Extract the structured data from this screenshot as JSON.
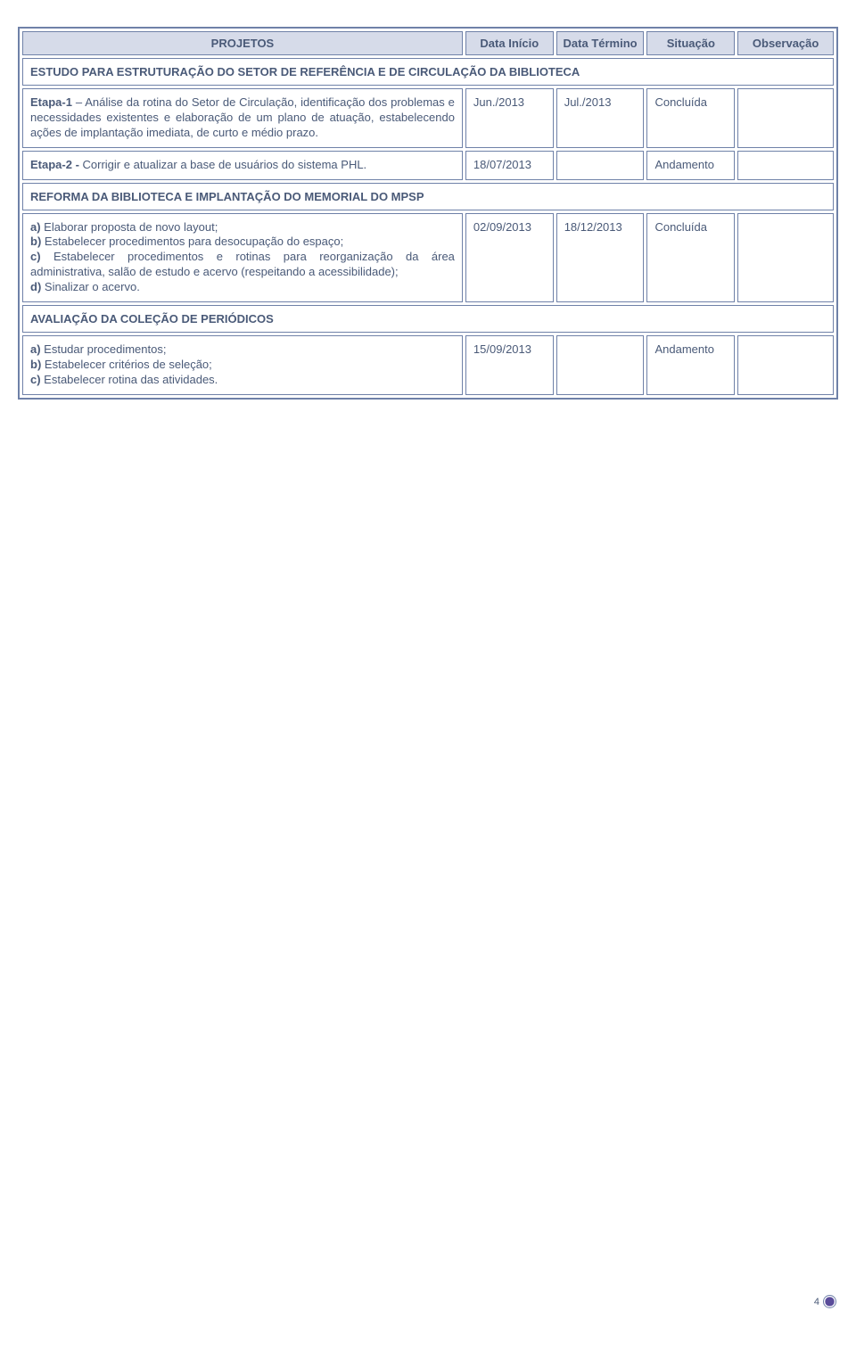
{
  "header": {
    "projetos": "PROJETOS",
    "data_inicio": "Data Início",
    "data_termino": "Data Término",
    "situacao": "Situação",
    "observacao": "Observação"
  },
  "sections": {
    "estudo": {
      "title": "ESTUDO PARA ESTRUTURAÇÃO DO SETOR DE REFERÊNCIA E DE CIRCULAÇÃO DA BIBLIOTECA",
      "etapa1": {
        "label_bold": "Etapa-1",
        "text": " – Análise da rotina do Setor de Circulação, identificação dos problemas e necessidades existentes e elaboração de um plano de atuação, estabelecendo ações de implantação imediata, de curto e médio prazo.",
        "inicio": "Jun./2013",
        "termino": "Jul./2013",
        "situacao": "Concluída",
        "obs": ""
      },
      "etapa2": {
        "label_bold": "Etapa-2 -",
        "text": " Corrigir e atualizar a base de usuários do sistema PHL.",
        "inicio": "18/07/2013",
        "termino": "",
        "situacao": "Andamento",
        "obs": ""
      }
    },
    "reforma": {
      "title": "REFORMA DA BIBLIOTECA E IMPLANTAÇÃO DO MEMORIAL DO MPSP",
      "row": {
        "a_b": "a)",
        "a_t": " Elaborar proposta de novo layout;",
        "b_b": "b)",
        "b_t": " Estabelecer procedimentos para desocupação do espaço;",
        "c_b": "c)",
        "c_t": " Estabelecer procedimentos e rotinas para reorganização da área administrativa, salão de estudo e acervo (respeitando a acessibilidade);",
        "d_b": "d)",
        "d_t": " Sinalizar o acervo.",
        "inicio": "02/09/2013",
        "termino": "18/12/2013",
        "situacao": "Concluída",
        "obs": ""
      }
    },
    "avaliacao": {
      "title": "AVALIAÇÃO DA COLEÇÃO DE PERIÓDICOS",
      "row": {
        "a_b": "a)",
        "a_t": " Estudar procedimentos;",
        "b_b": "b)",
        "b_t": " Estabelecer critérios de seleção;",
        "c_b": "c)",
        "c_t": " Estabelecer rotina das atividades.",
        "inicio": "15/09/2013",
        "termino": "",
        "situacao": "Andamento",
        "obs": ""
      }
    }
  },
  "page_number": "4"
}
